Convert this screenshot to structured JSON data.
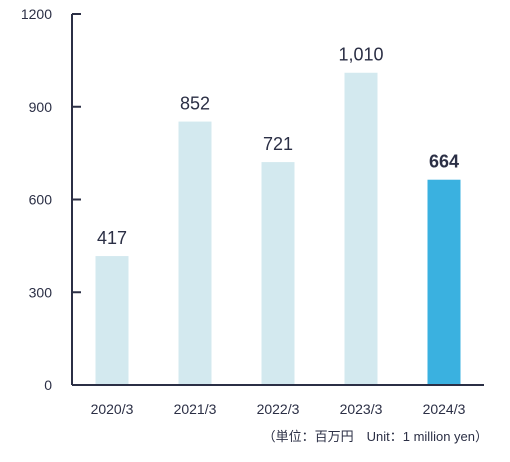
{
  "chart_data": {
    "type": "bar",
    "categories": [
      "2020/3",
      "2021/3",
      "2022/3",
      "2023/3",
      "2024/3"
    ],
    "values": [
      417,
      852,
      721,
      1010,
      664
    ],
    "data_labels": [
      "417",
      "852",
      "721",
      "1,010",
      "664"
    ],
    "highlight_index": 4,
    "ylim": [
      0,
      1200
    ],
    "yticks": [
      0,
      300,
      600,
      900,
      1200
    ],
    "ytick_labels": [
      "0",
      "300",
      "600",
      "900",
      "1200"
    ],
    "grid": false,
    "title": "",
    "xlabel": "",
    "ylabel": "",
    "unit_note": "（単位：百万円　Unit：1 million yen）",
    "colors": {
      "bar": "#d3e9ef",
      "highlight_bar": "#3ab1e0",
      "axis": "#2b2f45",
      "text": "#2b2f45"
    }
  }
}
